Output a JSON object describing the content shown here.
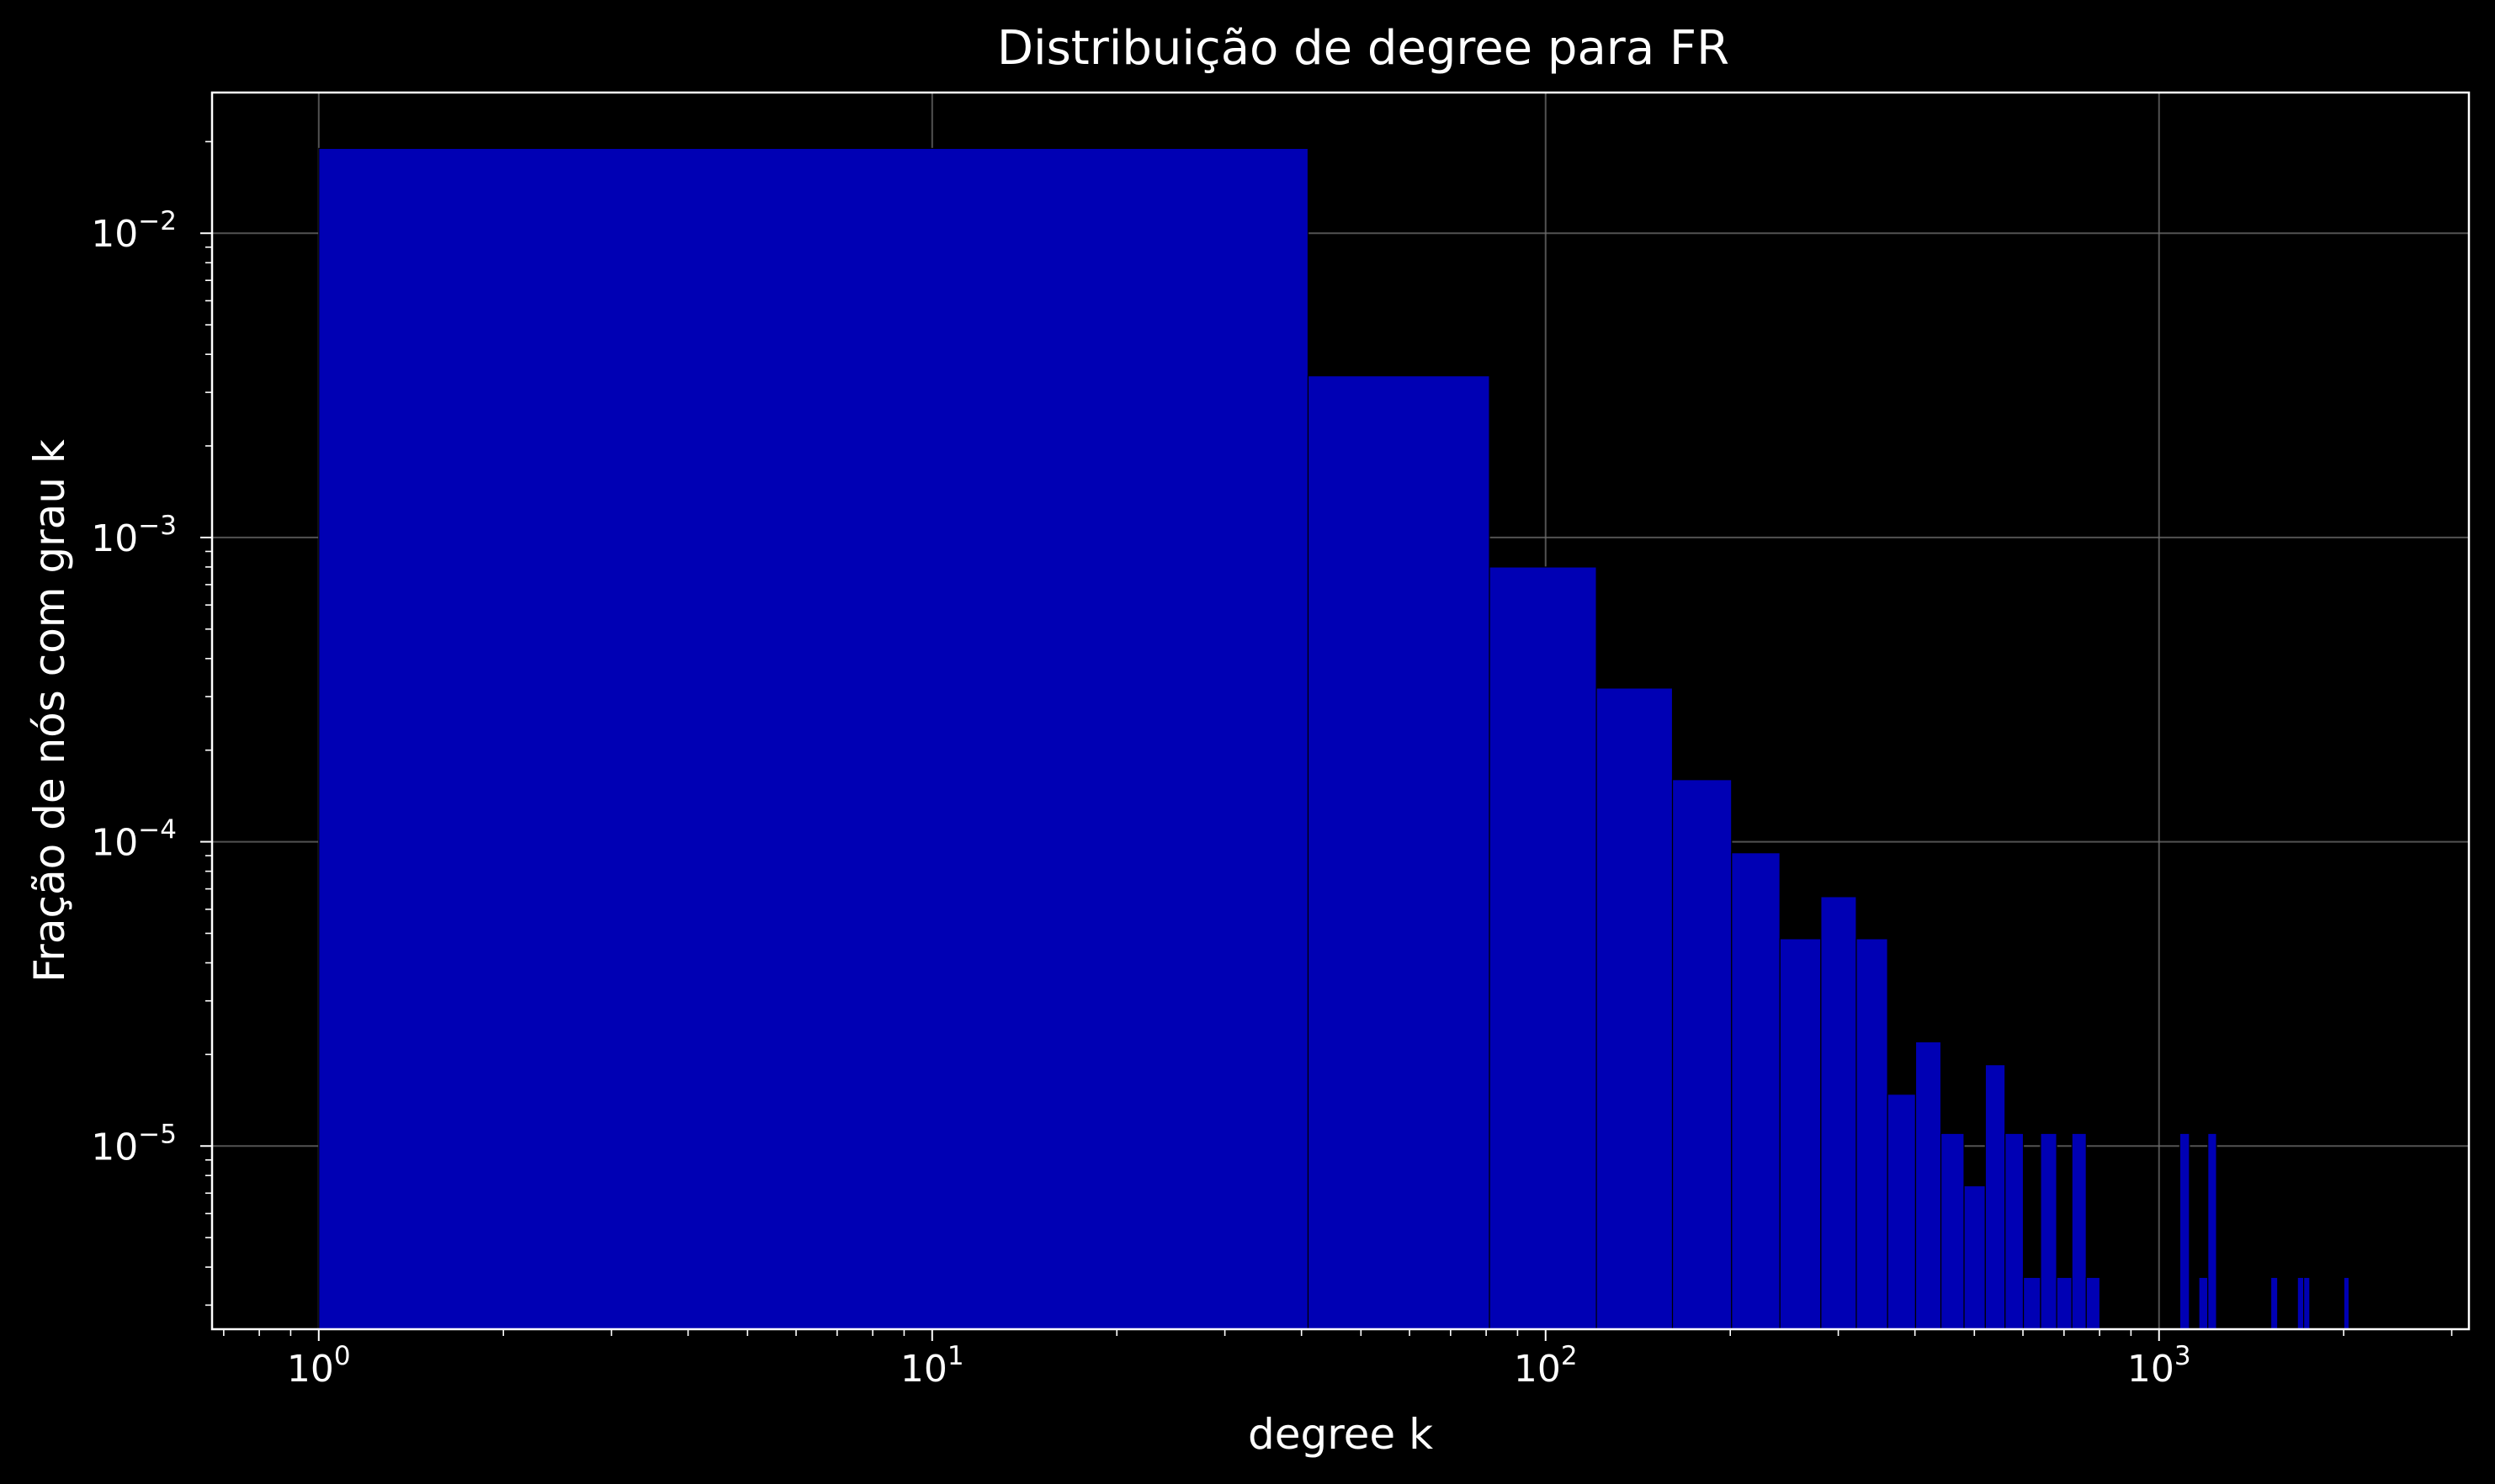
{
  "chart_data": {
    "type": "bar",
    "title": "Distribuição de degree para FR",
    "xlabel": "degree k",
    "ylabel": "Fração de nós com grau k",
    "xscale": "log",
    "yscale": "log",
    "xlim": [
      0.67,
      3200
    ],
    "ylim": [
      2.5e-06,
      0.029
    ],
    "grid": true,
    "x_ticks": [
      {
        "value": 1,
        "base": "10",
        "exp": "0"
      },
      {
        "value": 10,
        "base": "10",
        "exp": "1"
      },
      {
        "value": 100,
        "base": "10",
        "exp": "2"
      },
      {
        "value": 1000,
        "base": "10",
        "exp": "3"
      }
    ],
    "y_ticks": [
      {
        "value": 0.01,
        "base": "10",
        "exp": "−2"
      },
      {
        "value": 0.001,
        "base": "10",
        "exp": "−3"
      },
      {
        "value": 0.0001,
        "base": "10",
        "exp": "−4"
      },
      {
        "value": 1e-05,
        "base": "10",
        "exp": "−5"
      }
    ],
    "colors": {
      "bar": "#0000b4",
      "edge": "#000000",
      "frame": "#ffffff",
      "grid": "#6e6e6e",
      "background": "#000000"
    },
    "bars": [
      {
        "x0": 1,
        "x1": 41,
        "y": 0.019
      },
      {
        "x0": 41,
        "x1": 81,
        "y": 0.0034
      },
      {
        "x0": 81,
        "x1": 121,
        "y": 0.0008
      },
      {
        "x0": 121,
        "x1": 161,
        "y": 0.00032
      },
      {
        "x0": 161,
        "x1": 201,
        "y": 0.00016
      },
      {
        "x0": 201,
        "x1": 241,
        "y": 9.2e-05
      },
      {
        "x0": 241,
        "x1": 281,
        "y": 4.8e-05
      },
      {
        "x0": 281,
        "x1": 321,
        "y": 6.6e-05
      },
      {
        "x0": 321,
        "x1": 361,
        "y": 4.8e-05
      },
      {
        "x0": 361,
        "x1": 401,
        "y": 1.48e-05
      },
      {
        "x0": 401,
        "x1": 441,
        "y": 2.2e-05
      },
      {
        "x0": 441,
        "x1": 481,
        "y": 1.1e-05
      },
      {
        "x0": 481,
        "x1": 521,
        "y": 7.4e-06
      },
      {
        "x0": 521,
        "x1": 561,
        "y": 1.85e-05
      },
      {
        "x0": 561,
        "x1": 601,
        "y": 1.1e-05
      },
      {
        "x0": 601,
        "x1": 641,
        "y": 3.7e-06
      },
      {
        "x0": 641,
        "x1": 681,
        "y": 1.1e-05
      },
      {
        "x0": 681,
        "x1": 721,
        "y": 3.7e-06
      },
      {
        "x0": 721,
        "x1": 761,
        "y": 1.1e-05
      },
      {
        "x0": 761,
        "x1": 801,
        "y": 3.7e-06
      },
      {
        "x0": 1081,
        "x1": 1121,
        "y": 1.1e-05
      },
      {
        "x0": 1161,
        "x1": 1201,
        "y": 3.7e-06
      },
      {
        "x0": 1201,
        "x1": 1241,
        "y": 1.1e-05
      },
      {
        "x0": 1521,
        "x1": 1561,
        "y": 3.7e-06
      },
      {
        "x0": 1681,
        "x1": 1721,
        "y": 3.7e-06
      },
      {
        "x0": 1721,
        "x1": 1761,
        "y": 3.7e-06
      },
      {
        "x0": 2001,
        "x1": 2041,
        "y": 3.7e-06
      }
    ]
  }
}
